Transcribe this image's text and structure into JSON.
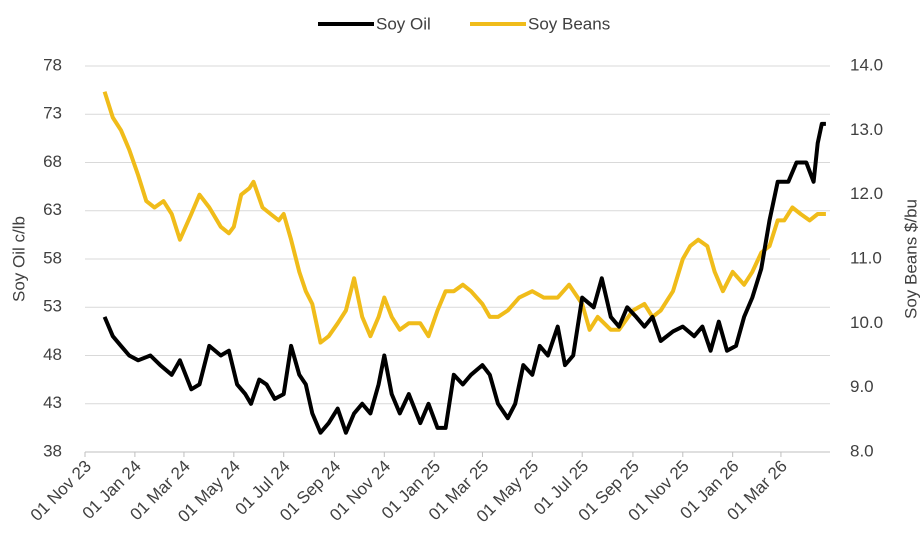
{
  "chart_data": {
    "type": "line",
    "y_label": "Soy Oil c/lb",
    "y2_label": "Soy Beans $/bu",
    "xlim": [
      "2023-11-01",
      "2026-04-30"
    ],
    "xticks": [
      {
        "value": "2023-11-01",
        "label": "01 Nov 23"
      },
      {
        "value": "2024-01-01",
        "label": "01 Jan 24"
      },
      {
        "value": "2024-03-01",
        "label": "01 Mar 24"
      },
      {
        "value": "2024-05-01",
        "label": "01 May 24"
      },
      {
        "value": "2024-07-01",
        "label": "01 Jul 24"
      },
      {
        "value": "2024-09-01",
        "label": "01 Sep 24"
      },
      {
        "value": "2024-11-01",
        "label": "01 Nov 24"
      },
      {
        "value": "2025-01-01",
        "label": "01 Jan 25"
      },
      {
        "value": "2025-03-01",
        "label": "01 Mar 25"
      },
      {
        "value": "2025-05-01",
        "label": "01 May 25"
      },
      {
        "value": "2025-07-01",
        "label": "01 Jul 25"
      },
      {
        "value": "2025-09-01",
        "label": "01 Sep 25"
      },
      {
        "value": "2025-11-01",
        "label": "01 Nov 25"
      },
      {
        "value": "2026-01-01",
        "label": "01 Jan 26"
      },
      {
        "value": "2026-03-01",
        "label": "01 Mar 26"
      }
    ],
    "ylim": [
      38,
      78
    ],
    "yticks": [
      38,
      43,
      48,
      53,
      58,
      63,
      68,
      73,
      78
    ],
    "y2lim": [
      8,
      14
    ],
    "y2ticks": [
      {
        "value": 8,
        "label": "8.0"
      },
      {
        "value": 9,
        "label": "9.0"
      },
      {
        "value": 10,
        "label": "10.0"
      },
      {
        "value": 11,
        "label": "11.0"
      },
      {
        "value": 12,
        "label": "12.0"
      },
      {
        "value": 13,
        "label": "13.0"
      },
      {
        "value": 14,
        "label": "14.0"
      }
    ],
    "grid": true,
    "legend": "top",
    "series": [
      {
        "name": "Soy Oil",
        "color": "#000000",
        "x": [
          "2023-11-25",
          "2023-12-05",
          "2023-12-15",
          "2023-12-25",
          "2024-01-05",
          "2024-01-20",
          "2024-02-01",
          "2024-02-15",
          "2024-02-25",
          "2024-03-10",
          "2024-03-20",
          "2024-04-01",
          "2024-04-15",
          "2024-04-25",
          "2024-05-05",
          "2024-05-15",
          "2024-05-22",
          "2024-06-01",
          "2024-06-10",
          "2024-06-20",
          "2024-07-01",
          "2024-07-10",
          "2024-07-20",
          "2024-07-28",
          "2024-08-05",
          "2024-08-15",
          "2024-08-25",
          "2024-09-05",
          "2024-09-15",
          "2024-09-25",
          "2024-10-05",
          "2024-10-15",
          "2024-10-25",
          "2024-11-01",
          "2024-11-10",
          "2024-11-20",
          "2024-12-01",
          "2024-12-15",
          "2024-12-25",
          "2025-01-05",
          "2025-01-15",
          "2025-01-25",
          "2025-02-05",
          "2025-02-15",
          "2025-03-01",
          "2025-03-10",
          "2025-03-20",
          "2025-04-01",
          "2025-04-10",
          "2025-04-20",
          "2025-05-01",
          "2025-05-10",
          "2025-05-20",
          "2025-06-01",
          "2025-06-10",
          "2025-06-20",
          "2025-07-01",
          "2025-07-15",
          "2025-07-25",
          "2025-08-05",
          "2025-08-15",
          "2025-08-25",
          "2025-09-05",
          "2025-09-15",
          "2025-09-25",
          "2025-10-05",
          "2025-10-20",
          "2025-11-01",
          "2025-11-15",
          "2025-11-25",
          "2025-12-05",
          "2025-12-15",
          "2025-12-25",
          "2026-01-05",
          "2026-01-15",
          "2026-01-25",
          "2026-02-05",
          "2026-02-15",
          "2026-02-25",
          "2026-03-10",
          "2026-03-20",
          "2026-04-01",
          "2026-04-10",
          "2026-04-15",
          "2026-04-20",
          "2026-04-25"
        ],
        "values": [
          52,
          50,
          49,
          48,
          47.5,
          48,
          47,
          46,
          47.5,
          44.5,
          45,
          49,
          48,
          48.5,
          45,
          44,
          43,
          45.5,
          45,
          43.5,
          44,
          49,
          46,
          45,
          42,
          40,
          41,
          42.5,
          40,
          42,
          43,
          42,
          45,
          48,
          44,
          42,
          44,
          41,
          43,
          40.5,
          40.5,
          46,
          45,
          46,
          47,
          46,
          43,
          41.5,
          43,
          47,
          46,
          49,
          48,
          51,
          47,
          48,
          54,
          53,
          56,
          52,
          51,
          53,
          52,
          51,
          52,
          49.5,
          50.5,
          51,
          50,
          51,
          48.5,
          51.5,
          48.5,
          49,
          52,
          54,
          57,
          62,
          66,
          66,
          68,
          68,
          66,
          70,
          72,
          72
        ]
      },
      {
        "name": "Soy Beans",
        "color": "#f0bc1a",
        "axis": "y2",
        "x": [
          "2023-11-25",
          "2023-12-05",
          "2023-12-15",
          "2023-12-25",
          "2024-01-05",
          "2024-01-15",
          "2024-01-25",
          "2024-02-05",
          "2024-02-15",
          "2024-02-25",
          "2024-03-10",
          "2024-03-20",
          "2024-04-01",
          "2024-04-15",
          "2024-04-25",
          "2024-05-01",
          "2024-05-10",
          "2024-05-20",
          "2024-05-25",
          "2024-06-05",
          "2024-06-15",
          "2024-06-25",
          "2024-07-01",
          "2024-07-10",
          "2024-07-20",
          "2024-07-28",
          "2024-08-05",
          "2024-08-15",
          "2024-08-25",
          "2024-09-05",
          "2024-09-15",
          "2024-09-25",
          "2024-10-05",
          "2024-10-15",
          "2024-10-25",
          "2024-11-01",
          "2024-11-10",
          "2024-11-20",
          "2024-12-01",
          "2024-12-15",
          "2024-12-25",
          "2025-01-05",
          "2025-01-15",
          "2025-01-25",
          "2025-02-05",
          "2025-02-15",
          "2025-03-01",
          "2025-03-10",
          "2025-03-20",
          "2025-04-01",
          "2025-04-15",
          "2025-05-01",
          "2025-05-15",
          "2025-06-01",
          "2025-06-15",
          "2025-07-01",
          "2025-07-10",
          "2025-07-20",
          "2025-08-05",
          "2025-08-15",
          "2025-09-01",
          "2025-09-15",
          "2025-09-25",
          "2025-10-05",
          "2025-10-20",
          "2025-11-01",
          "2025-11-10",
          "2025-11-20",
          "2025-12-01",
          "2025-12-10",
          "2025-12-20",
          "2026-01-01",
          "2026-01-15",
          "2026-01-25",
          "2026-02-05",
          "2026-02-15",
          "2026-02-25",
          "2026-03-05",
          "2026-03-15",
          "2026-03-25",
          "2026-04-05",
          "2026-04-15",
          "2026-04-25"
        ],
        "values": [
          13.6,
          13.2,
          13.0,
          12.7,
          12.3,
          11.9,
          11.8,
          11.9,
          11.7,
          11.3,
          11.7,
          12.0,
          11.8,
          11.5,
          11.4,
          11.5,
          12.0,
          12.1,
          12.2,
          11.8,
          11.7,
          11.6,
          11.7,
          11.3,
          10.8,
          10.5,
          10.3,
          9.7,
          9.8,
          10.0,
          10.2,
          10.7,
          10.1,
          9.8,
          10.1,
          10.4,
          10.1,
          9.9,
          10.0,
          10.0,
          9.8,
          10.2,
          10.5,
          10.5,
          10.6,
          10.5,
          10.3,
          10.1,
          10.1,
          10.2,
          10.4,
          10.5,
          10.4,
          10.4,
          10.6,
          10.3,
          9.9,
          10.1,
          9.9,
          9.9,
          10.2,
          10.3,
          10.1,
          10.2,
          10.5,
          11.0,
          11.2,
          11.3,
          11.2,
          10.8,
          10.5,
          10.8,
          10.6,
          10.8,
          11.1,
          11.2,
          11.6,
          11.6,
          11.8,
          11.7,
          11.6,
          11.7,
          11.7
        ]
      }
    ]
  }
}
